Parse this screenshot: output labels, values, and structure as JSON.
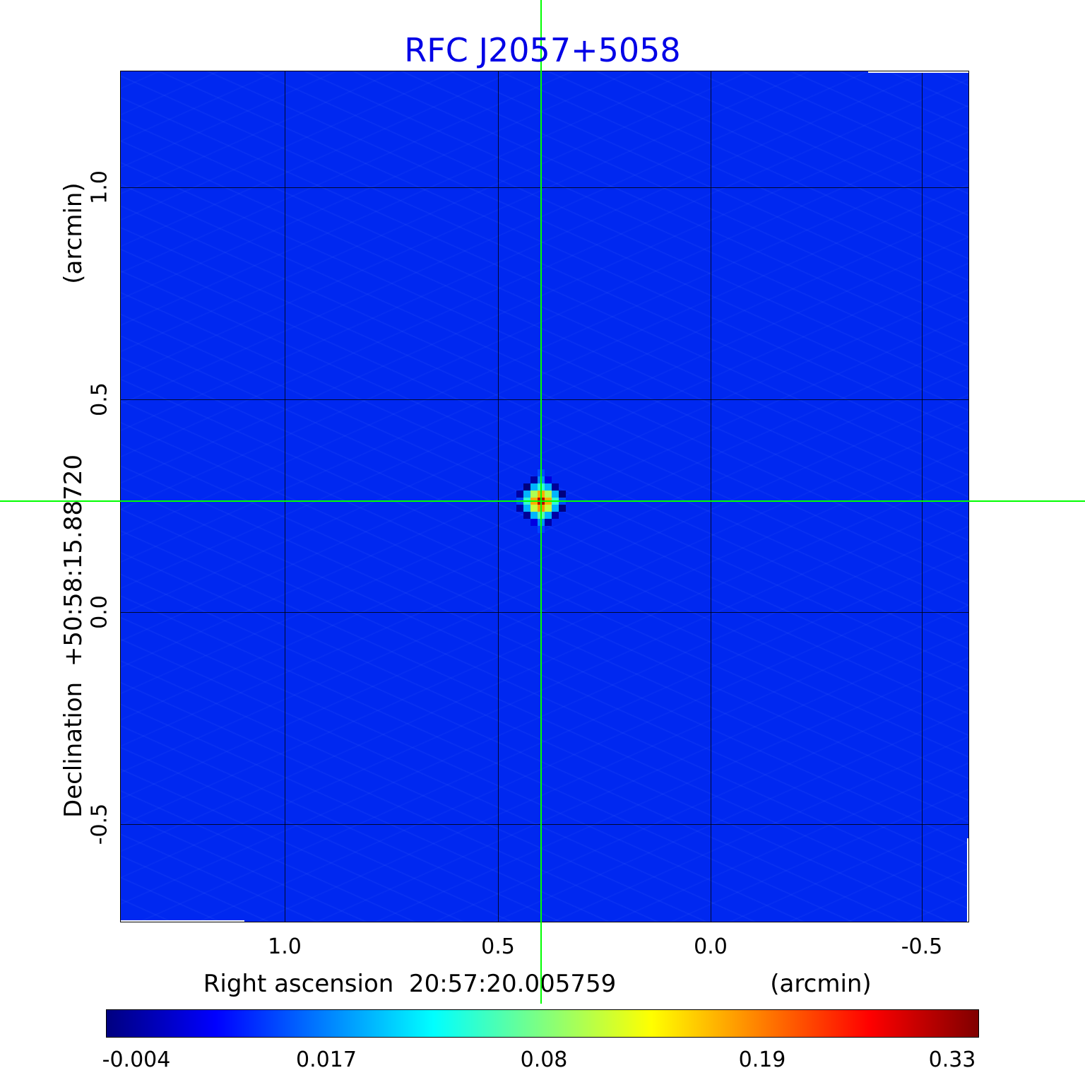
{
  "title": "RFC J2057+5058",
  "colors": {
    "title": "#0000e6",
    "crosshair": "#00ff00",
    "plot_background": "#0028f0"
  },
  "axes": {
    "x": {
      "label": "Right ascension  20:57:20.005759",
      "unit": "(arcmin)",
      "ticks": [
        "1.0",
        "0.5",
        "0.0",
        "-0.5"
      ]
    },
    "y": {
      "label": "Declination  +50:58:15.88720",
      "unit": "(arcmin)",
      "ticks": [
        "1.0",
        "0.5",
        "0.0",
        "-0.5"
      ]
    }
  },
  "colorbar": {
    "tick_labels": [
      "-0.004",
      "0.017",
      "0.08",
      "0.19",
      "0.33"
    ],
    "stops": [
      "#000080",
      "#0000ff",
      "#00ffff",
      "#ffff00",
      "#ff0000",
      "#800000"
    ],
    "stop_positions": [
      0,
      12.5,
      37.5,
      62.5,
      87.5,
      100
    ]
  },
  "chart_data": {
    "type": "heatmap",
    "title": "RFC J2057+5058",
    "xlabel": "Right ascension 20:57:20.005759 (arcmin)",
    "ylabel": "Declination +50:58:15.88720 (arcmin)",
    "x_ticks": [
      1.0,
      0.5,
      0.0,
      -0.5
    ],
    "y_ticks": [
      1.0,
      0.5,
      0.0,
      -0.5
    ],
    "x_range": [
      1.39,
      -0.61
    ],
    "y_range": [
      -0.73,
      1.28
    ],
    "grid": true,
    "colormap": "jet",
    "intensity_scale_jy_per_beam": [
      -0.004,
      0.017,
      0.08,
      0.19,
      0.33
    ],
    "background_level_jy": 0.0095,
    "peak_jy_per_beam": 0.3,
    "crosshair_arcmin": {
      "x": 0.4,
      "y": 0.26
    },
    "source_cell_arcmin": 0.0166,
    "source_matrix": [
      [
        null,
        null,
        null,
        null,
        null,
        null,
        null,
        null,
        null,
        null,
        null
      ],
      [
        null,
        null,
        null,
        null,
        null,
        0.013,
        null,
        null,
        null,
        null,
        null
      ],
      [
        null,
        null,
        null,
        null,
        -0.001,
        0.02,
        0.004,
        null,
        null,
        null,
        null
      ],
      [
        null,
        null,
        null,
        -0.004,
        0.03,
        0.06,
        0.03,
        -0.002,
        null,
        null,
        null
      ],
      [
        null,
        null,
        -0.001,
        0.03,
        0.1,
        0.17,
        0.1,
        0.03,
        -0.004,
        null,
        null
      ],
      [
        null,
        null,
        0.013,
        0.06,
        0.17,
        0.3,
        0.17,
        0.06,
        0.013,
        null,
        null
      ],
      [
        null,
        null,
        -0.001,
        0.03,
        0.11,
        0.18,
        0.11,
        0.03,
        -0.004,
        null,
        null
      ],
      [
        null,
        null,
        null,
        -0.002,
        0.03,
        0.07,
        0.03,
        -0.001,
        null,
        null,
        null
      ],
      [
        null,
        null,
        null,
        null,
        0.004,
        0.02,
        -0.001,
        null,
        null,
        null,
        null
      ],
      [
        null,
        null,
        null,
        null,
        null,
        0.012,
        null,
        null,
        null,
        null,
        null
      ],
      [
        null,
        null,
        null,
        null,
        null,
        null,
        null,
        null,
        null,
        null,
        null
      ]
    ]
  }
}
